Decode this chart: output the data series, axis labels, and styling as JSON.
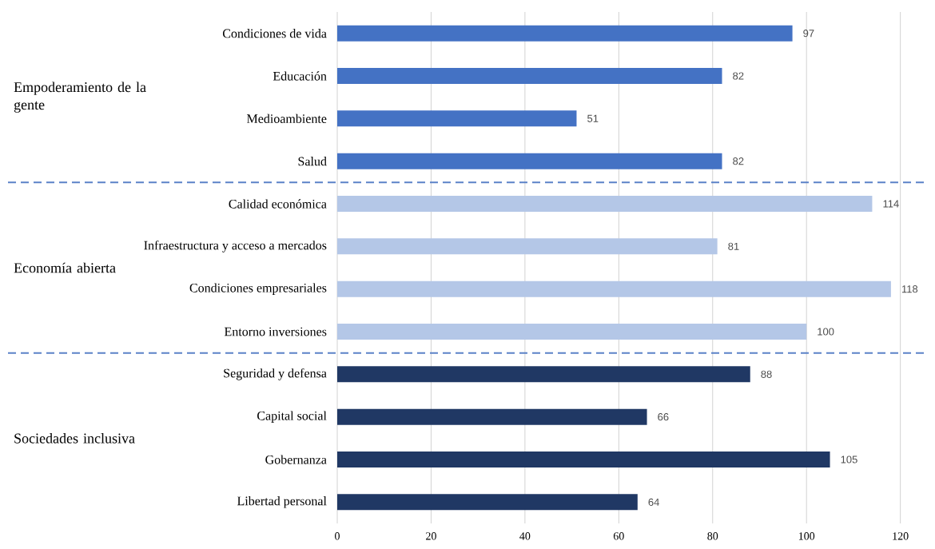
{
  "chart_data": {
    "type": "bar",
    "orientation": "horizontal",
    "categories": [
      "Condiciones de vida",
      "Educación",
      "Medioambiente",
      "Salud",
      "Calidad económica",
      "Infraestructura y acceso a mercados",
      "Condiciones empresariales",
      "Entorno inversiones",
      "Seguridad y defensa",
      "Capital social",
      "Gobernanza",
      "Libertad personal"
    ],
    "series": [
      {
        "color": "#4472c4",
        "values": [
          97,
          82,
          51,
          82,
          null,
          null,
          null,
          null,
          null,
          null,
          null,
          null
        ]
      },
      {
        "color": "#b4c7e7",
        "values": [
          null,
          null,
          null,
          null,
          114,
          81,
          118,
          100,
          null,
          null,
          null,
          null
        ]
      },
      {
        "color": "#203864",
        "values": [
          null,
          null,
          null,
          null,
          null,
          null,
          null,
          null,
          88,
          66,
          105,
          64
        ]
      }
    ],
    "xlim": [
      0,
      125
    ],
    "xticks": [
      0,
      20,
      40,
      60,
      80,
      100,
      120
    ],
    "data_labels": true,
    "grid": "x",
    "annotations": [
      "Empoderamiento de la gente",
      "Economía abierta",
      "Sociedades inclusiva"
    ]
  }
}
